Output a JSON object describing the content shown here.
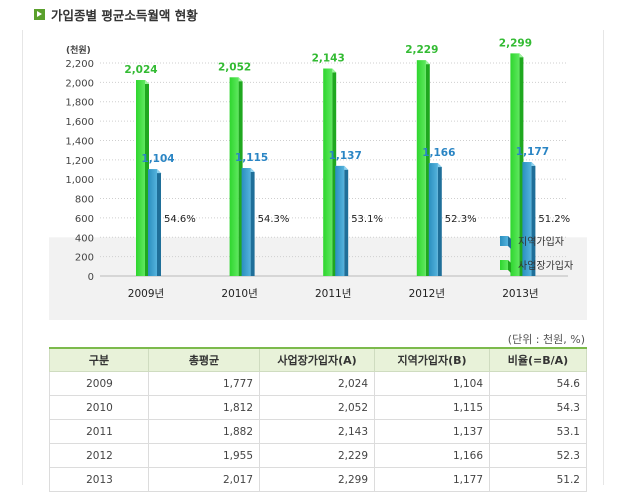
{
  "title": "가입종별 평균소득월액 현황",
  "unit_note": "(단위 : 천원, %)",
  "colors": {
    "employer": "#33cc33",
    "regional": "#3399cc"
  },
  "chart_data": {
    "type": "bar",
    "ylabel": "(천원)",
    "ylim": [
      0,
      2200
    ],
    "yticks": [
      0,
      200,
      400,
      600,
      800,
      1000,
      1200,
      1400,
      1600,
      1800,
      2000,
      2200
    ],
    "ytick_labels": [
      "0",
      "200",
      "400",
      "600",
      "800",
      "1,000",
      "1,200",
      "1,400",
      "1,600",
      "1,800",
      "2,000",
      "2,200"
    ],
    "categories": [
      "2009년",
      "2010년",
      "2011년",
      "2012년",
      "2013년"
    ],
    "series": [
      {
        "name": "사업장가입자",
        "values": [
          2024,
          2052,
          2143,
          2229,
          2299
        ],
        "labels": [
          "2,024",
          "2,052",
          "2,143",
          "2,229",
          "2,299"
        ]
      },
      {
        "name": "지역가입자",
        "values": [
          1104,
          1115,
          1137,
          1166,
          1177
        ],
        "labels": [
          "1,104",
          "1,115",
          "1,137",
          "1,166",
          "1,177"
        ]
      }
    ],
    "ratio_labels": [
      "54.6%",
      "54.3%",
      "53.1%",
      "52.3%",
      "51.2%"
    ],
    "legend": [
      "지역가입자",
      "사업장가입자"
    ],
    "legend_position": "right",
    "grid": true
  },
  "table": {
    "headers": [
      "구분",
      "총평균",
      "사업장가입자(A)",
      "지역가입자(B)",
      "비율(=B/A)"
    ],
    "rows": [
      [
        "2009",
        "1,777",
        "2,024",
        "1,104",
        "54.6"
      ],
      [
        "2010",
        "1,812",
        "2,052",
        "1,115",
        "54.3"
      ],
      [
        "2011",
        "1,882",
        "2,143",
        "1,137",
        "53.1"
      ],
      [
        "2012",
        "1,955",
        "2,229",
        "1,166",
        "52.3"
      ],
      [
        "2013",
        "2,017",
        "2,299",
        "1,177",
        "51.2"
      ]
    ]
  }
}
